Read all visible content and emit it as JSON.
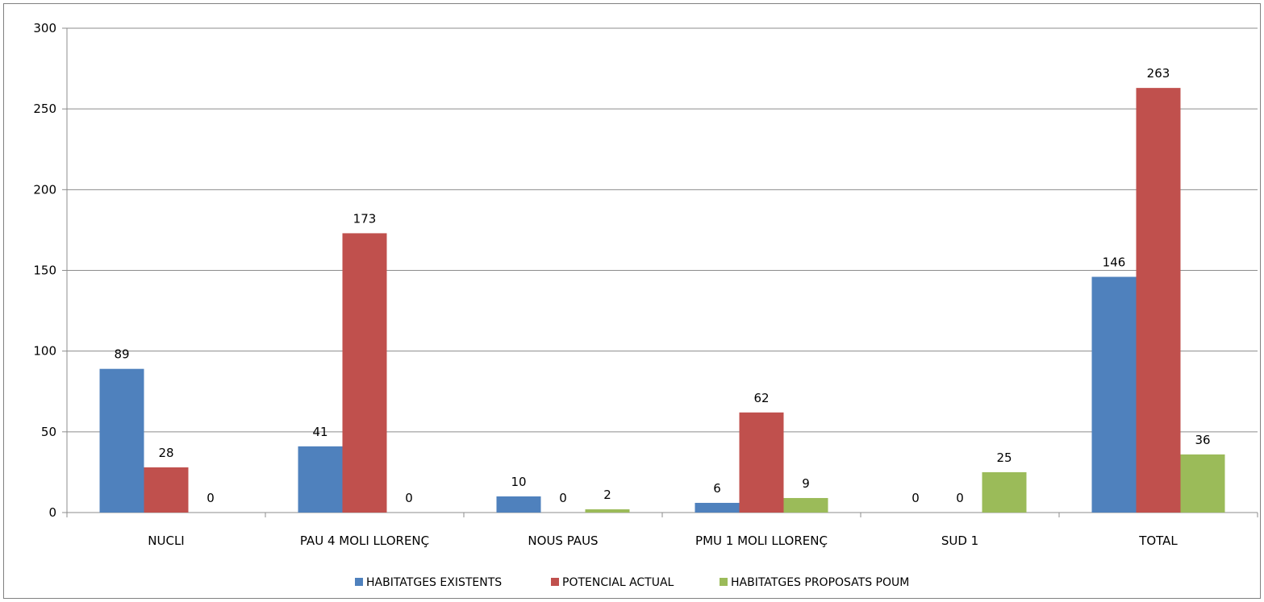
{
  "chart_data": {
    "type": "bar",
    "categories": [
      "NUCLI",
      "PAU 4 MOLI LLORENÇ",
      "NOUS PAUS",
      "PMU 1 MOLI LLORENÇ",
      "SUD 1",
      "TOTAL"
    ],
    "series": [
      {
        "name": "HABITATGES EXISTENTS",
        "color": "#4f81bd",
        "values": [
          89,
          41,
          10,
          6,
          0,
          146
        ]
      },
      {
        "name": "POTENCIAL ACTUAL",
        "color": "#c0504d",
        "values": [
          28,
          173,
          0,
          62,
          0,
          263
        ]
      },
      {
        "name": "HABITATGES PROPOSATS POUM",
        "color": "#9bbb59",
        "values": [
          0,
          0,
          2,
          9,
          25,
          36
        ]
      }
    ],
    "ylim": [
      0,
      300
    ],
    "yticks": [
      0,
      50,
      100,
      150,
      200,
      250,
      300
    ],
    "grid": true,
    "legend_position": "bottom"
  }
}
